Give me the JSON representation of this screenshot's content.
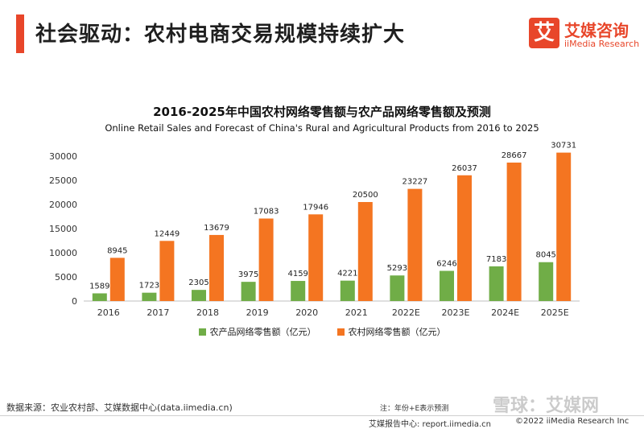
{
  "header": {
    "title": "社会驱动：农村电商交易规模持续扩大"
  },
  "logo": {
    "box_char": "艾",
    "name_cn": "艾媒咨询",
    "name_en": "iiMedia Research"
  },
  "colors": {
    "accent": "#e8462a",
    "green": "#70ad47",
    "orange": "#f47521"
  },
  "chart_data": {
    "type": "bar",
    "title": "2016-2025年中国农村网络零售额与农产品网络零售额及预测",
    "subtitle": "Online Retail Sales and Forecast of China's Rural and Agricultural Products from 2016 to 2025",
    "categories": [
      "2016",
      "2017",
      "2018",
      "2019",
      "2020",
      "2021",
      "2022E",
      "2023E",
      "2024E",
      "2025E"
    ],
    "series": [
      {
        "name": "农产品网络零售额（亿元）",
        "color": "#70ad47",
        "values": [
          1589,
          1723,
          2305,
          3975,
          4159,
          4221,
          5293,
          6246,
          7183,
          8045
        ]
      },
      {
        "name": "农村网络零售额（亿元）",
        "color": "#f47521",
        "values": [
          8945,
          12449,
          13679,
          17083,
          17946,
          20500,
          23227,
          26037,
          28667,
          30731
        ]
      }
    ],
    "yticks": [
      0,
      5000,
      10000,
      15000,
      20000,
      25000,
      30000
    ],
    "ylim": [
      0,
      30000
    ],
    "xlabel": "",
    "ylabel": "",
    "legend": "bottom"
  },
  "footer": {
    "source": "数据来源：农业农村部、艾媒数据中心(data.iimedia.cn)",
    "note": "注：年份+E表示预测",
    "report": "艾媒报告中心: report.iimedia.cn",
    "copyright": "©2022  iiMedia Research  Inc",
    "watermark": "雪球：艾媒网"
  }
}
